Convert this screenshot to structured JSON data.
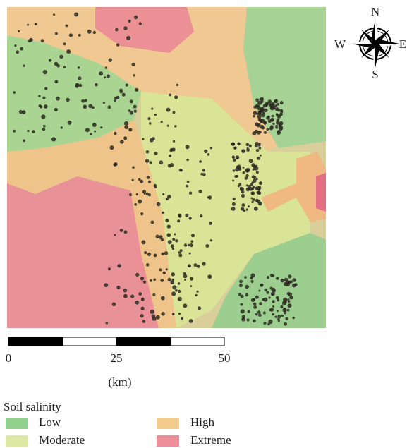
{
  "compass": {
    "north": "N",
    "south": "S",
    "east": "E",
    "west": "W"
  },
  "scale_bar": {
    "labels": [
      "0",
      "25",
      "50"
    ],
    "unit": "(km)"
  },
  "legend": {
    "title": "Soil salinity",
    "items": [
      {
        "label": "Low",
        "color": "#93cf8c"
      },
      {
        "label": "Moderate",
        "color": "#dde8a3"
      },
      {
        "label": "High",
        "color": "#f3c98d"
      },
      {
        "label": "Extreme",
        "color": "#ee8e98"
      }
    ]
  }
}
